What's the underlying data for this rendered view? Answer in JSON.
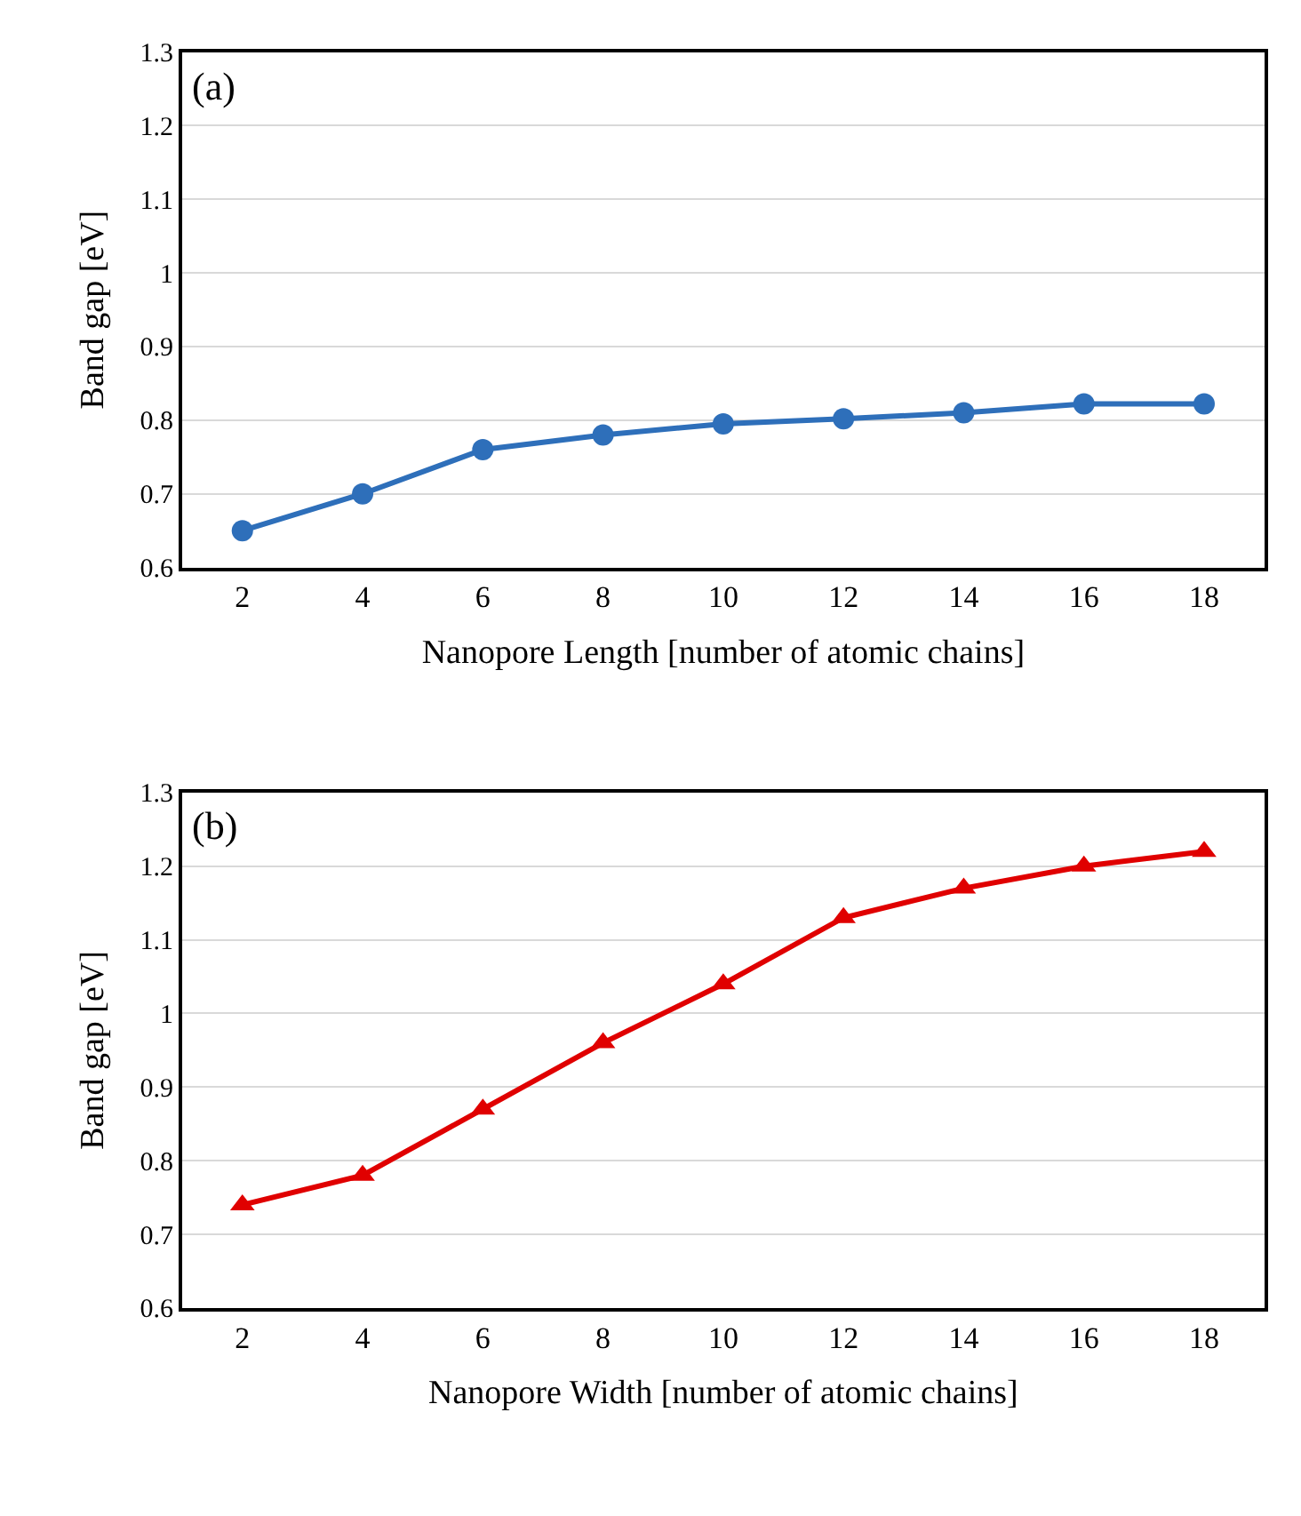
{
  "chart_data": [
    {
      "type": "line",
      "categories": [
        "2",
        "4",
        "6",
        "8",
        "10",
        "12",
        "14",
        "16",
        "18"
      ],
      "xlabel": "Nanopore Length [number of atomic chains]",
      "ylabel": "Band gap [eV]",
      "annotations": [
        "(a)"
      ],
      "ylim": [
        0.6,
        1.3
      ],
      "yticks": [
        0.6,
        0.7,
        0.8,
        0.9,
        1,
        1.1,
        1.2,
        1.3
      ],
      "grid": "y",
      "marker": "circle",
      "line_style": "solid",
      "series": [
        {
          "color": "#2e6fba",
          "values": [
            0.65,
            0.7,
            0.76,
            0.78,
            0.795,
            0.802,
            0.81,
            0.822,
            0.822
          ]
        }
      ]
    },
    {
      "type": "line",
      "categories": [
        "2",
        "4",
        "6",
        "8",
        "10",
        "12",
        "14",
        "16",
        "18"
      ],
      "xlabel": "Nanopore Width [number of atomic chains]",
      "ylabel": "Band gap [eV]",
      "annotations": [
        "(b)"
      ],
      "ylim": [
        0.6,
        1.3
      ],
      "yticks": [
        0.6,
        0.7,
        0.8,
        0.9,
        1,
        1.1,
        1.2,
        1.3
      ],
      "grid": "y",
      "marker": "triangle",
      "line_style": "solid",
      "series": [
        {
          "color": "#e00000",
          "values": [
            0.74,
            0.78,
            0.87,
            0.96,
            1.04,
            1.13,
            1.17,
            1.2,
            1.22
          ]
        }
      ]
    }
  ]
}
